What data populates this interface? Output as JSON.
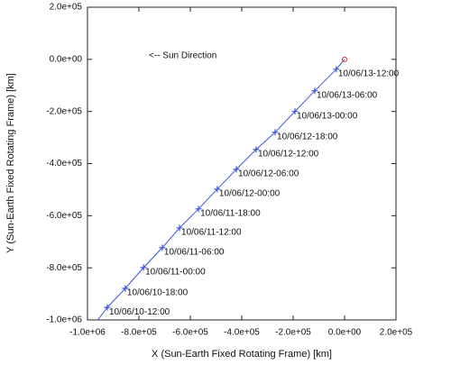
{
  "chart_data": {
    "type": "scatter",
    "xlabel": "X (Sun-Earth Fixed Rotating Frame) [km]",
    "ylabel": "Y (Sun-Earth Fixed Rotating Frame) [km]",
    "annotation": "<-- Sun Direction",
    "xlim": [
      -1000000,
      200000
    ],
    "ylim": [
      -1000000,
      200000
    ],
    "xticks": [
      {
        "value": -1000000,
        "label": "-1.0e+06"
      },
      {
        "value": -800000,
        "label": "-8.0e+05"
      },
      {
        "value": -600000,
        "label": "-6.0e+05"
      },
      {
        "value": -400000,
        "label": "-4.0e+05"
      },
      {
        "value": -200000,
        "label": "-2.0e+05"
      },
      {
        "value": 0,
        "label": "0.0e+00"
      },
      {
        "value": 200000,
        "label": "2.0e+05"
      }
    ],
    "yticks": [
      {
        "value": -1000000,
        "label": "-1.0e+06"
      },
      {
        "value": -800000,
        "label": "-8.0e+05"
      },
      {
        "value": -600000,
        "label": "-6.0e+05"
      },
      {
        "value": -400000,
        "label": "-4.0e+05"
      },
      {
        "value": -200000,
        "label": "-2.0e+05"
      },
      {
        "value": 0,
        "label": "0.0e+00"
      },
      {
        "value": 200000,
        "label": "2.0e+05"
      }
    ],
    "series": [
      {
        "color": "#3a55d8",
        "x": [
          -32000,
          -116000,
          -193000,
          -270000,
          -344000,
          -421000,
          -495000,
          -568000,
          -642000,
          -709000,
          -782000,
          -853000,
          -923000
        ],
        "values": [
          -38000,
          -121000,
          -200000,
          -280000,
          -346000,
          -422000,
          -498000,
          -574000,
          -647000,
          -723000,
          -799000,
          -879000,
          -952000
        ],
        "point_labels": [
          "10/06/13-12:00",
          "10/06/13-06:00",
          "10/06/13-00:00",
          "10/06/12-18:00",
          "10/06/12-12:00",
          "10/06/12-06:00",
          "10/06/12-00:00",
          "10/06/11-18:00",
          "10/06/11-12:00",
          "10/06/11-06:00",
          "10/06/11-00:00",
          "10/06/10-18:00",
          "10/06/10-12:00"
        ]
      }
    ],
    "origin_marker": {
      "x": 0,
      "y": 0,
      "color": "#e03030"
    },
    "line_end": {
      "x": -960000,
      "y": -1000000
    }
  }
}
